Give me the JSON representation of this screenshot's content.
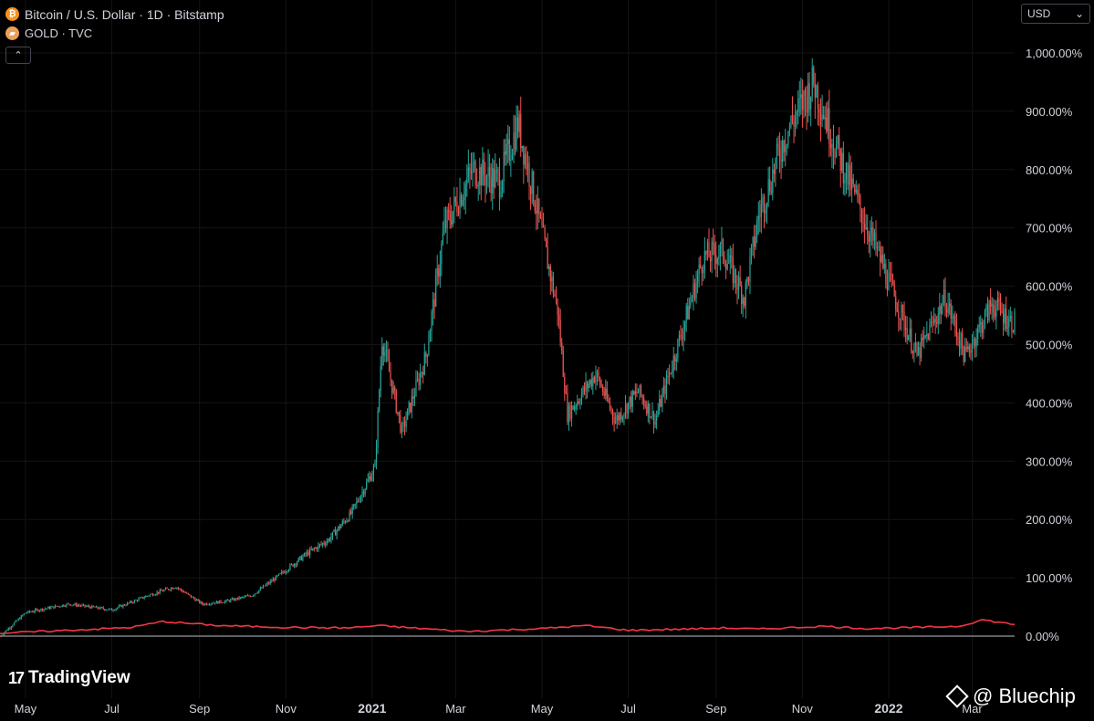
{
  "legend": {
    "btc_label": "Bitcoin / U.S. Dollar · 1D · Bitstamp",
    "btc_icon": "bitcoin-icon",
    "gold_label": "GOLD · TVC",
    "gold_icon": "gold-bars-icon"
  },
  "collapse_glyph": "⌃",
  "currency": {
    "value": "USD",
    "chevron": "⌄"
  },
  "branding": {
    "logo_mark": "17",
    "logo_text": "TradingView"
  },
  "watermark": {
    "text": "@ Bluechip"
  },
  "colors": {
    "up": "#26a69a",
    "down": "#ef5350",
    "gold_line": "#f23645",
    "zero_line": "#9598a1",
    "grid": "#141414"
  },
  "chart_data": {
    "type": "line",
    "y_scale": "percent",
    "ylim": [
      -10,
      1050
    ],
    "y_ticks": [
      "1,000.00%",
      "900.00%",
      "800.00%",
      "700.00%",
      "600.00%",
      "500.00%",
      "400.00%",
      "300.00%",
      "200.00%",
      "100.00%",
      "0.00%"
    ],
    "y_tick_values": [
      1000,
      900,
      800,
      700,
      600,
      500,
      400,
      300,
      200,
      100,
      0
    ],
    "x_ticks": [
      {
        "label": "May",
        "date": "2020-05-01",
        "bold": false
      },
      {
        "label": "Jul",
        "date": "2020-07-01",
        "bold": false
      },
      {
        "label": "Sep",
        "date": "2020-09-01",
        "bold": false
      },
      {
        "label": "Nov",
        "date": "2020-11-01",
        "bold": false
      },
      {
        "label": "2021",
        "date": "2021-01-01",
        "bold": true
      },
      {
        "label": "Mar",
        "date": "2021-03-01",
        "bold": false
      },
      {
        "label": "May",
        "date": "2021-05-01",
        "bold": false
      },
      {
        "label": "Jul",
        "date": "2021-07-01",
        "bold": false
      },
      {
        "label": "Sep",
        "date": "2021-09-01",
        "bold": false
      },
      {
        "label": "Nov",
        "date": "2021-11-01",
        "bold": false
      },
      {
        "label": "2022",
        "date": "2022-01-01",
        "bold": true
      },
      {
        "label": "Mar",
        "date": "2022-03-01",
        "bold": false
      }
    ],
    "x_range": [
      "2020-04-13",
      "2022-03-31"
    ],
    "series": [
      {
        "kind": "candles",
        "x": [
          "2020-04-13",
          "2020-05-01",
          "2020-05-10",
          "2020-06-01",
          "2020-07-01",
          "2020-07-27",
          "2020-08-15",
          "2020-09-03",
          "2020-09-20",
          "2020-10-08",
          "2020-10-25",
          "2020-11-15",
          "2020-12-01",
          "2020-12-17",
          "2021-01-03",
          "2021-01-08",
          "2021-01-22",
          "2021-02-08",
          "2021-02-21",
          "2021-03-13",
          "2021-04-01",
          "2021-04-14",
          "2021-04-25",
          "2021-05-12",
          "2021-05-19",
          "2021-06-08",
          "2021-06-22",
          "2021-07-08",
          "2021-07-20",
          "2021-08-10",
          "2021-08-23",
          "2021-09-06",
          "2021-09-21",
          "2021-10-01",
          "2021-10-20",
          "2021-11-09",
          "2021-11-26",
          "2021-12-04",
          "2021-12-27",
          "2022-01-21",
          "2022-02-10",
          "2022-02-24",
          "2022-03-15",
          "2022-03-28"
        ],
        "values": [
          0,
          40,
          45,
          55,
          45,
          70,
          85,
          55,
          60,
          70,
          100,
          140,
          165,
          210,
          290,
          510,
          350,
          480,
          700,
          800,
          780,
          880,
          760,
          560,
          380,
          450,
          370,
          420,
          370,
          540,
          650,
          660,
          580,
          720,
          860,
          950,
          830,
          780,
          640,
          480,
          580,
          480,
          570,
          540
        ]
      },
      {
        "name": "GOLD · TVC",
        "kind": "line",
        "x": [
          "2020-04-13",
          "2020-06-01",
          "2020-07-15",
          "2020-08-06",
          "2020-09-15",
          "2020-11-01",
          "2020-12-15",
          "2021-01-05",
          "2021-03-08",
          "2021-05-01",
          "2021-06-01",
          "2021-07-01",
          "2021-08-09",
          "2021-09-06",
          "2021-10-01",
          "2021-11-16",
          "2021-12-15",
          "2022-01-25",
          "2022-02-20",
          "2022-03-08",
          "2022-03-31"
        ],
        "values": [
          5,
          10,
          15,
          25,
          18,
          15,
          14,
          18,
          8,
          13,
          18,
          10,
          12,
          14,
          12,
          17,
          13,
          15,
          17,
          28,
          20
        ]
      }
    ]
  }
}
